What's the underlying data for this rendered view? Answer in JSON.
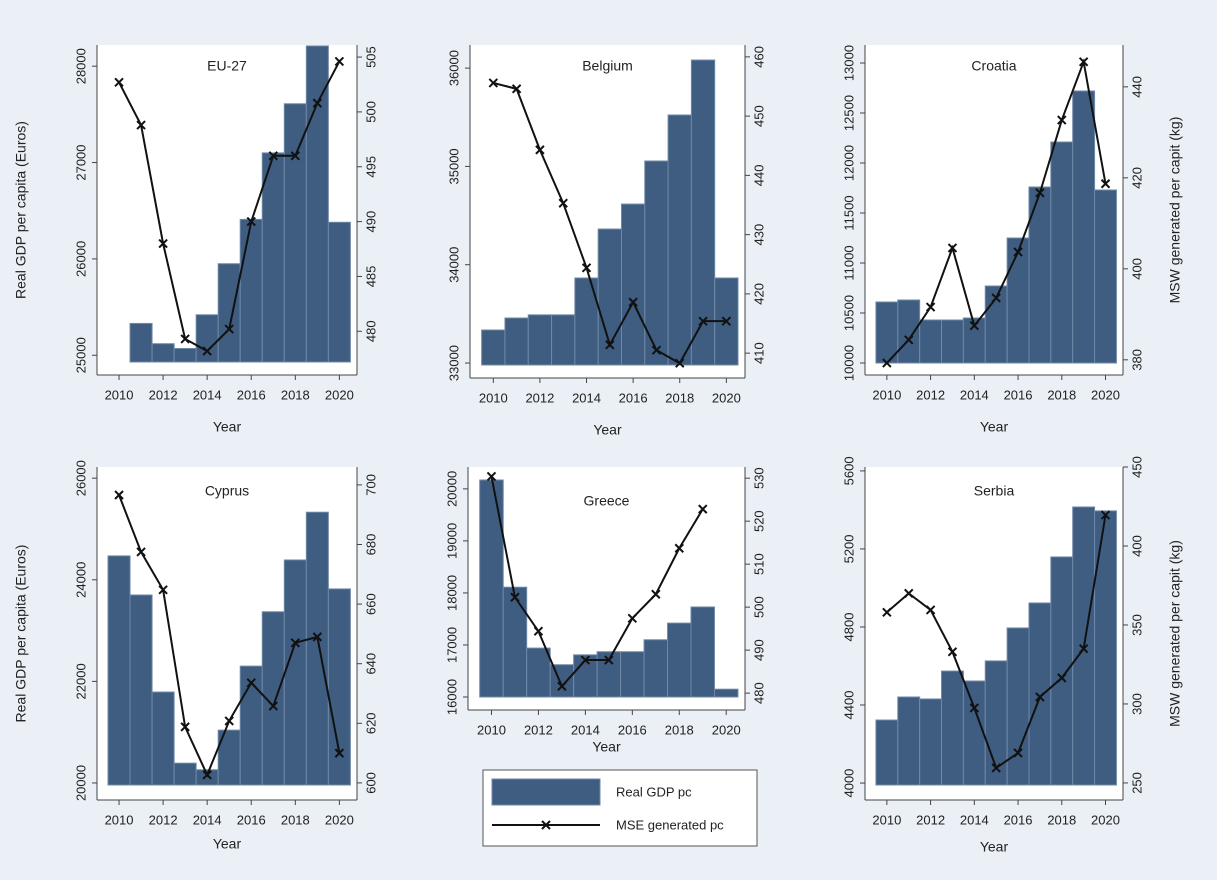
{
  "chart_data": [
    {
      "type": "bar_line",
      "title": "EU-27",
      "x_label": "Year",
      "y_label": "Real GDP per capita (Euros)",
      "x": [
        2010,
        2011,
        2012,
        2013,
        2014,
        2015,
        2016,
        2017,
        2018,
        2019,
        2020
      ],
      "xlim": [
        2009,
        2020.8
      ],
      "xticks": [
        2010,
        2012,
        2014,
        2016,
        2018,
        2020
      ],
      "ylim": [
        24930,
        28220
      ],
      "yticks": [
        25000,
        26000,
        27000,
        28000
      ],
      "y2lim": [
        477.2,
        506.1
      ],
      "y2ticks": [
        480,
        485,
        490,
        495,
        500,
        505
      ],
      "series": [
        {
          "name": "Real GDP pc",
          "type": "bar",
          "color": "#3f5d80",
          "values": [
            null,
            25330,
            25120,
            25070,
            25420,
            25950,
            26410,
            27100,
            27610,
            28210,
            26380
          ]
        },
        {
          "name": "MSE generated pc",
          "type": "line",
          "axis": "y2",
          "color": "#111111",
          "values": [
            502.7,
            498.8,
            488.0,
            479.3,
            478.2,
            480.2,
            490.0,
            496.0,
            496.0,
            500.8,
            504.6
          ]
        }
      ]
    },
    {
      "type": "bar_line",
      "title": "Belgium",
      "x_label": "Year",
      "x": [
        2010,
        2011,
        2012,
        2013,
        2014,
        2015,
        2016,
        2017,
        2018,
        2019,
        2020
      ],
      "xlim": [
        2009,
        2020.8
      ],
      "xticks": [
        2010,
        2012,
        2014,
        2016,
        2018,
        2020
      ],
      "ylim": [
        32980,
        36235
      ],
      "yticks": [
        33000,
        34000,
        35000,
        36000
      ],
      "y2lim": [
        408,
        462
      ],
      "y2ticks": [
        410,
        420,
        430,
        440,
        450,
        460
      ],
      "series": [
        {
          "type": "bar",
          "color": "#3f5d80",
          "values": [
            33336,
            33458,
            33490,
            33490,
            33865,
            34363,
            34617,
            35055,
            35523,
            36082,
            33865
          ]
        },
        {
          "type": "line",
          "axis": "y2",
          "color": "#111111",
          "values": [
            455.6,
            454.6,
            444.3,
            435.3,
            424.4,
            411.4,
            418.6,
            410.5,
            408.3,
            415.4,
            415.4
          ]
        }
      ]
    },
    {
      "type": "bar_line",
      "title": "Croatia",
      "x_label": "Year",
      "y2_label": "MSW generated per capit (kg)",
      "x": [
        2010,
        2011,
        2012,
        2013,
        2014,
        2015,
        2016,
        2017,
        2018,
        2019,
        2020
      ],
      "xlim": [
        2009,
        2020.8
      ],
      "xticks": [
        2010,
        2012,
        2014,
        2016,
        2018,
        2020
      ],
      "ylim": [
        10000,
        13180
      ],
      "yticks": [
        10000,
        10500,
        11000,
        11500,
        12000,
        12500,
        13000
      ],
      "y2lim": [
        379.3,
        449.2
      ],
      "y2ticks": [
        380,
        400,
        420,
        440
      ],
      "series": [
        {
          "type": "bar",
          "color": "#3f5d80",
          "values": [
            10610,
            10630,
            10430,
            10430,
            10450,
            10770,
            11250,
            11760,
            12210,
            12720,
            11730
          ]
        },
        {
          "type": "line",
          "axis": "y2",
          "color": "#111111",
          "values": [
            379.3,
            384.4,
            391.6,
            404.6,
            387.5,
            393.6,
            403.7,
            416.7,
            432.7,
            445.5,
            418.7
          ]
        }
      ]
    },
    {
      "type": "bar_line",
      "title": "Cyprus",
      "x_label": "Year",
      "y_label": "Real GDP per capita (Euros)",
      "x": [
        2010,
        2011,
        2012,
        2013,
        2014,
        2015,
        2016,
        2017,
        2018,
        2019,
        2020
      ],
      "xlim": [
        2009,
        2020.8
      ],
      "xticks": [
        2010,
        2012,
        2014,
        2016,
        2018,
        2020
      ],
      "ylim": [
        19960,
        26220
      ],
      "yticks": [
        20000,
        22000,
        24000,
        26000
      ],
      "y2lim": [
        599.3,
        706
      ],
      "y2ticks": [
        600,
        620,
        640,
        660,
        680,
        700
      ],
      "series": [
        {
          "type": "bar",
          "color": "#3f5d80",
          "values": [
            24470,
            23700,
            21790,
            20390,
            20260,
            21040,
            22300,
            23370,
            24390,
            25330,
            23820
          ]
        },
        {
          "type": "line",
          "axis": "y2",
          "color": "#111111",
          "values": [
            696.6,
            677.5,
            664.8,
            618.8,
            602.7,
            620.8,
            633.6,
            625.8,
            647.0,
            649.0,
            610.0
          ]
        }
      ]
    },
    {
      "type": "bar_line",
      "title": "Greece",
      "x_label": "Year",
      "x": [
        2010,
        2011,
        2012,
        2013,
        2014,
        2015,
        2016,
        2017,
        2018,
        2019,
        2020
      ],
      "xlim": [
        2009,
        2020.8
      ],
      "xticks": [
        2010,
        2012,
        2014,
        2016,
        2018,
        2020
      ],
      "ylim": [
        16000,
        20420
      ],
      "yticks": [
        16000,
        17000,
        18000,
        19000,
        20000
      ],
      "y2lim": [
        479.1,
        532.6
      ],
      "y2ticks": [
        480,
        490,
        500,
        510,
        520,
        530
      ],
      "series": [
        {
          "type": "bar",
          "color": "#3f5d80",
          "values": [
            20170,
            18110,
            16940,
            16620,
            16810,
            16870,
            16870,
            17100,
            17420,
            17730,
            16150
          ]
        },
        {
          "type": "line",
          "axis": "y2",
          "color": "#111111",
          "values": [
            530.4,
            502.3,
            494.4,
            481.6,
            487.7,
            487.7,
            497.4,
            503.0,
            513.7,
            522.8,
            null
          ]
        }
      ]
    },
    {
      "type": "bar_line",
      "title": "Serbia",
      "x_label": "Year",
      "y2_label": "MSW generated per capit (kg)",
      "x": [
        2010,
        2011,
        2012,
        2013,
        2014,
        2015,
        2016,
        2017,
        2018,
        2019,
        2020
      ],
      "xlim": [
        2009,
        2020.8
      ],
      "xticks": [
        2010,
        2012,
        2014,
        2016,
        2018,
        2020
      ],
      "ylim": [
        3990,
        5620
      ],
      "yticks": [
        4000,
        4400,
        4800,
        5200,
        5600
      ],
      "y2lim": [
        248.7,
        450
      ],
      "y2ticks": [
        250,
        300,
        350,
        400,
        450
      ],
      "series": [
        {
          "type": "bar",
          "color": "#3f5d80",
          "values": [
            4323,
            4441,
            4431,
            4574,
            4523,
            4626,
            4795,
            4923,
            5159,
            5415,
            5395
          ]
        },
        {
          "type": "line",
          "axis": "y2",
          "color": "#111111",
          "values": [
            358.0,
            370.0,
            359.5,
            333.0,
            297.5,
            259.5,
            269.0,
            304.4,
            316.5,
            335.0,
            419.6
          ]
        }
      ]
    }
  ]
}
